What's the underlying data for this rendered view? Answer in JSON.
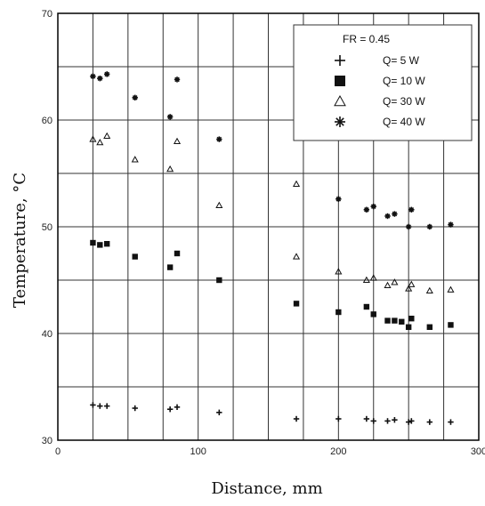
{
  "chart_data": {
    "type": "scatter",
    "xlabel": "Distance, mm",
    "ylabel": "Temperature, °C",
    "xlim": [
      0,
      300
    ],
    "ylim": [
      30,
      70
    ],
    "x_ticks": [
      0,
      100,
      200,
      300
    ],
    "y_ticks": [
      30,
      40,
      50,
      60,
      70
    ],
    "x_tick_labels": [
      "0",
      "100",
      "200",
      "300"
    ],
    "y_tick_labels": [
      "30",
      "40",
      "50",
      "60",
      "70"
    ],
    "grid": true,
    "legend": {
      "placement": "top-right",
      "title": "FR = 0.45",
      "entries": [
        "Q= 5 W",
        "Q= 10 W",
        "Q= 30 W",
        "Q= 40 W"
      ]
    },
    "series": [
      {
        "name": "Q= 5 W",
        "marker": "plus",
        "points": [
          [
            25,
            33.3
          ],
          [
            30,
            33.2
          ],
          [
            35,
            33.2
          ],
          [
            55,
            33.0
          ],
          [
            80,
            32.9
          ],
          [
            85,
            33.1
          ],
          [
            115,
            32.6
          ],
          [
            170,
            32.0
          ],
          [
            200,
            32.0
          ],
          [
            220,
            32.0
          ],
          [
            225,
            31.8
          ],
          [
            235,
            31.8
          ],
          [
            240,
            31.9
          ],
          [
            250,
            31.7
          ],
          [
            252,
            31.8
          ],
          [
            265,
            31.7
          ],
          [
            280,
            31.7
          ]
        ]
      },
      {
        "name": "Q= 10 W",
        "marker": "square",
        "points": [
          [
            25,
            48.5
          ],
          [
            30,
            48.3
          ],
          [
            35,
            48.4
          ],
          [
            55,
            47.2
          ],
          [
            80,
            46.2
          ],
          [
            85,
            47.5
          ],
          [
            115,
            45.0
          ],
          [
            170,
            42.8
          ],
          [
            200,
            42.0
          ],
          [
            220,
            42.5
          ],
          [
            225,
            41.8
          ],
          [
            235,
            41.2
          ],
          [
            240,
            41.2
          ],
          [
            245,
            41.1
          ],
          [
            250,
            40.6
          ],
          [
            252,
            41.4
          ],
          [
            265,
            40.6
          ],
          [
            280,
            40.8
          ]
        ]
      },
      {
        "name": "Q= 30 W",
        "marker": "triangle",
        "points": [
          [
            25,
            58.2
          ],
          [
            30,
            57.9
          ],
          [
            35,
            58.5
          ],
          [
            55,
            56.3
          ],
          [
            80,
            55.4
          ],
          [
            85,
            58.0
          ],
          [
            115,
            52.0
          ],
          [
            170,
            54.0
          ],
          [
            170,
            47.2
          ],
          [
            200,
            45.8
          ],
          [
            220,
            45.0
          ],
          [
            225,
            45.2
          ],
          [
            235,
            44.5
          ],
          [
            240,
            44.8
          ],
          [
            250,
            44.2
          ],
          [
            252,
            44.6
          ],
          [
            265,
            44.0
          ],
          [
            280,
            44.1
          ]
        ]
      },
      {
        "name": "Q= 40 W",
        "marker": "asterisk",
        "points": [
          [
            25,
            64.1
          ],
          [
            30,
            63.9
          ],
          [
            35,
            64.3
          ],
          [
            55,
            62.1
          ],
          [
            80,
            60.3
          ],
          [
            85,
            63.8
          ],
          [
            115,
            58.2
          ],
          [
            200,
            52.6
          ],
          [
            220,
            51.6
          ],
          [
            225,
            51.9
          ],
          [
            235,
            51.0
          ],
          [
            240,
            51.2
          ],
          [
            250,
            50.0
          ],
          [
            252,
            51.6
          ],
          [
            265,
            50.0
          ],
          [
            280,
            50.2
          ]
        ]
      }
    ]
  }
}
